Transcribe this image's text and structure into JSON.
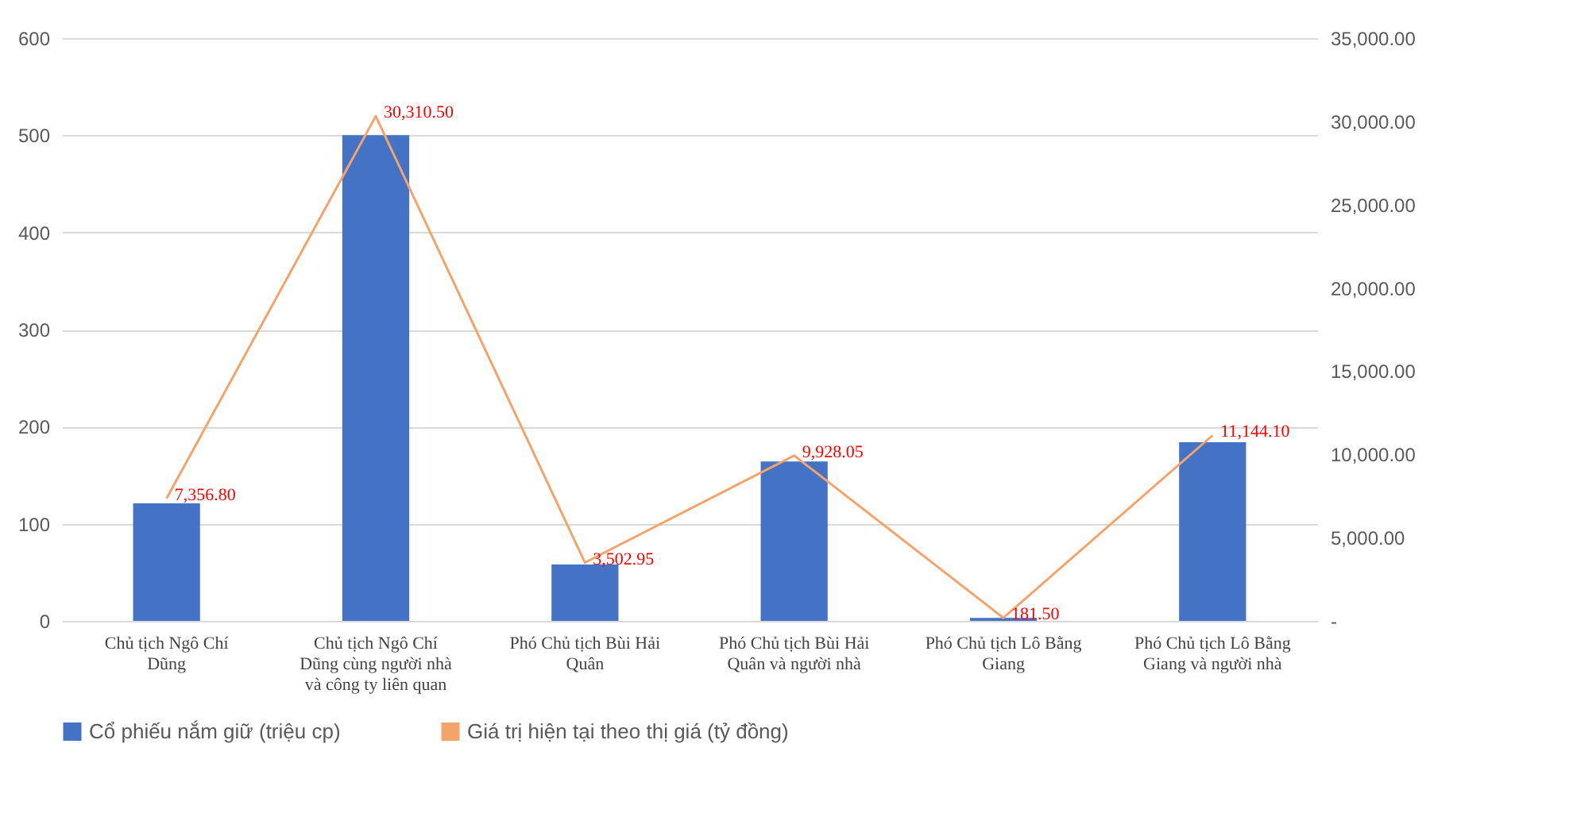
{
  "chart_data": {
    "type": "bar",
    "categories": [
      "Chủ tịch Ngô Chí Dũng",
      "Chủ tịch Ngô Chí Dũng cùng người nhà và công ty liên quan",
      "Phó Chủ tịch Bùi Hải Quân",
      "Phó Chủ tịch Bùi Hải Quân và người nhà",
      "Phó Chủ tịch Lô Bằng Giang",
      "Phó Chủ tịch Lô Bằng Giang và người nhà"
    ],
    "series": [
      {
        "name": "Cổ phiếu nắm giữ (triệu cp)",
        "color": "#4472c4",
        "values": [
          121,
          500,
          58,
          164,
          3,
          184
        ]
      },
      {
        "name": "Giá trị hiện tại theo thị giá (tỷ đồng)",
        "type": "line",
        "axis": "y2",
        "color": "#f4a46a",
        "values": [
          7356.8,
          30310.5,
          3502.95,
          9928.05,
          181.5,
          11144.1
        ],
        "value_labels": [
          "7,356.80",
          "30,310.50",
          "3,502.95",
          "9,928.05",
          "181.50",
          "11,144.10"
        ]
      }
    ],
    "ylim": [
      0,
      600
    ],
    "yticks": [
      0,
      100,
      200,
      300,
      400,
      500,
      600
    ],
    "y2lim": [
      0,
      35000
    ],
    "y2ticks": [
      {
        "value": 0,
        "label": "-"
      },
      {
        "value": 5000,
        "label": "5,000.00"
      },
      {
        "value": 10000,
        "label": "10,000.00"
      },
      {
        "value": 15000,
        "label": "15,000.00"
      },
      {
        "value": 20000,
        "label": "20,000.00"
      },
      {
        "value": 25000,
        "label": "25,000.00"
      },
      {
        "value": 30000,
        "label": "30,000.00"
      },
      {
        "value": 35000,
        "label": "35,000.00"
      }
    ],
    "grid": "y",
    "legend": "bottom"
  }
}
